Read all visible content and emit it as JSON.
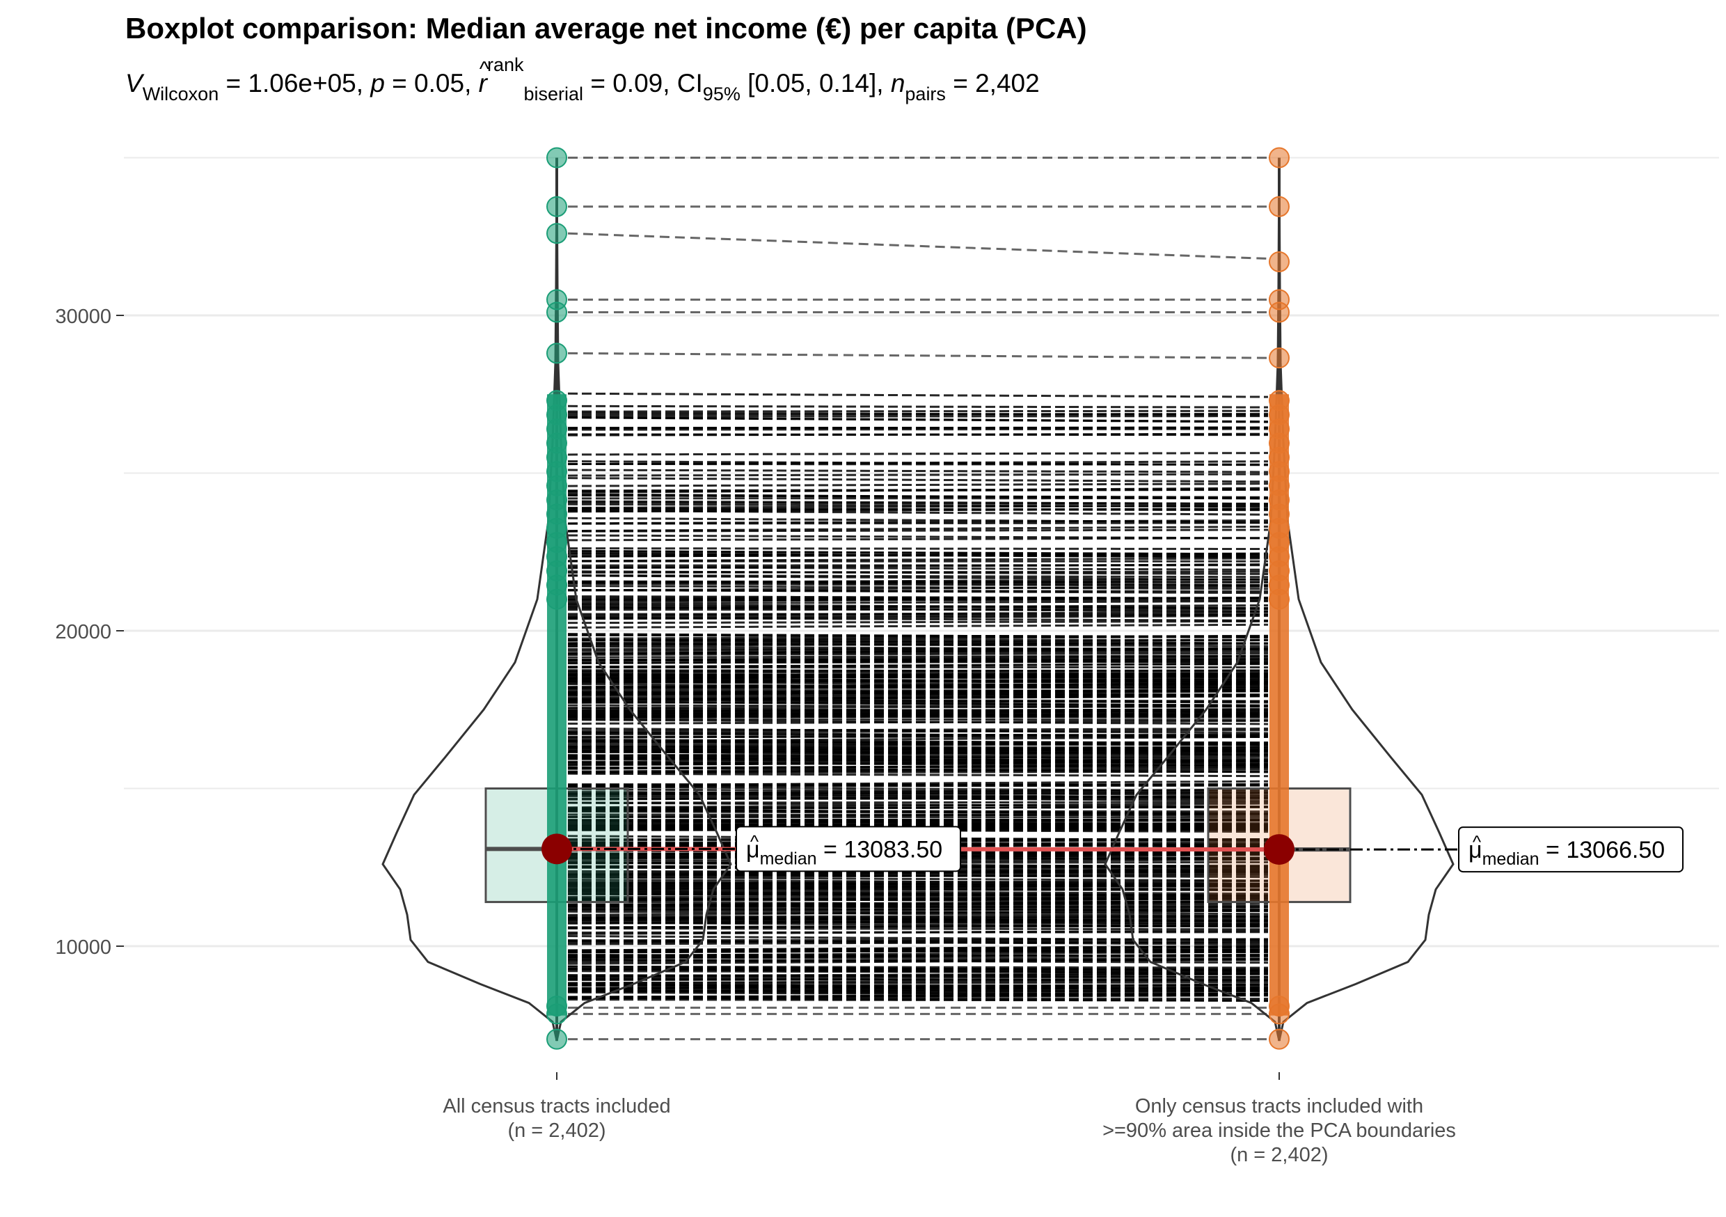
{
  "chart_data": {
    "type": "boxplot",
    "title": "Boxplot comparison: Median average net income (€) per capita (PCA)",
    "subtitle": {
      "V_symbol": "V",
      "V_sub": "Wilcoxon",
      "V_value": " = 1.06e+05, ",
      "p_symbol": "p",
      "p_value": " = 0.05, ",
      "r_symbol": "r",
      "r_hat": "^",
      "r_sup": "rank",
      "r_sub": "biserial",
      "r_value": " = 0.09, ",
      "ci_symbol": "CI",
      "ci_sub": "95%",
      "ci_value": " [0.05, 0.14], ",
      "n_symbol": "n",
      "n_sub": "pairs",
      "n_value": " = 2,402"
    },
    "y_ticks": [
      10000,
      20000,
      30000
    ],
    "ylim": [
      5800,
      35800
    ],
    "gridlines": [
      10000,
      15000,
      20000,
      25000,
      30000,
      35000
    ],
    "groups": [
      {
        "label_lines": [
          "All census tracts included",
          "(n = 2,402)"
        ],
        "color": "#1b9e77",
        "box": {
          "q1": 11400,
          "median": 13083.5,
          "q3": 15000
        },
        "whisker": [
          7000,
          35000
        ],
        "median_label": {
          "mu": "μ",
          "hat": "^",
          "sub": "median",
          "value": " = 13083.50"
        }
      },
      {
        "label_lines": [
          "Only census tracts included with",
          ">=90% area inside the PCA boundaries",
          "(n = 2,402)"
        ],
        "color": "#e6772c",
        "box": {
          "q1": 11400,
          "median": 13066.5,
          "q3": 15000
        },
        "whisker": [
          7000,
          35000
        ],
        "median_label": {
          "mu": "μ",
          "hat": "^",
          "sub": "median",
          "value": " = 13066.50"
        }
      }
    ],
    "paired_lines_sample": [
      [
        35000,
        35000
      ],
      [
        33450,
        33450
      ],
      [
        32600,
        31800
      ],
      [
        30500,
        30500
      ],
      [
        30100,
        30100
      ],
      [
        28800,
        28650
      ],
      [
        7850,
        7850
      ],
      [
        8050,
        8050
      ],
      [
        7050,
        7050
      ]
    ],
    "outliers_top": [
      [
        35000,
        35000
      ],
      [
        33450,
        33450
      ],
      [
        32600,
        31700
      ],
      [
        30500,
        30500
      ],
      [
        30100,
        30100
      ],
      [
        28800,
        28650
      ]
    ],
    "colors": {
      "median_line": "#e05252",
      "median_point": "#8b0000",
      "paired_line": "#000000"
    }
  }
}
